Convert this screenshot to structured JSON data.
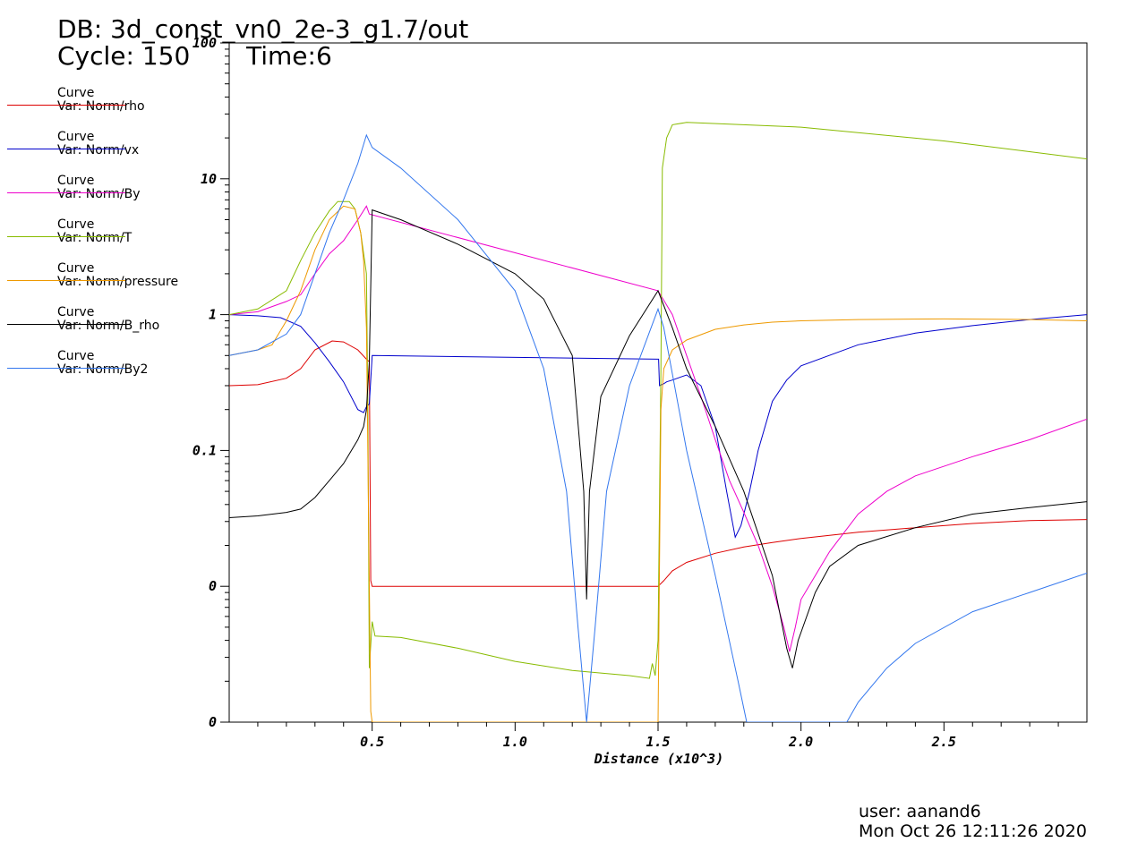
{
  "header": {
    "db": "DB: 3d_const_vn0_2e-3_g1.7/out",
    "cycle": "Cycle: 150",
    "time": "Time:6"
  },
  "legend": [
    {
      "line1": "Curve",
      "line2": "Var: Norm/rho",
      "color": "#dd0000"
    },
    {
      "line1": "Curve",
      "line2": "Var: Norm/vx",
      "color": "#0000cc"
    },
    {
      "line1": "Curve",
      "line2": "Var: Norm/By",
      "color": "#ee00cc"
    },
    {
      "line1": "Curve",
      "line2": "Var: Norm/T",
      "color": "#88bb00"
    },
    {
      "line1": "Curve",
      "line2": "Var: Norm/pressure",
      "color": "#ee9900"
    },
    {
      "line1": "Curve",
      "line2": "Var: Norm/B_rho",
      "color": "#000000"
    },
    {
      "line1": "Curve",
      "line2": "Var: Norm/By2",
      "color": "#3377ee"
    }
  ],
  "footer": {
    "user": "user: aanand6",
    "date": "Mon Oct 26 12:11:26 2020"
  },
  "chart_data": {
    "type": "line",
    "xlabel": "Distance (x10^3)",
    "ylabel": "",
    "xlim": [
      0,
      3.0
    ],
    "ylim_decades": [
      -3,
      2
    ],
    "y_scale": "log",
    "grid": false,
    "x_ticks": [
      "0.5",
      "1.0",
      "1.5",
      "2.0",
      "2.5"
    ],
    "x_tick_values": [
      0.5,
      1.0,
      1.5,
      2.0,
      2.5
    ],
    "y_ticks": [
      "0",
      "0",
      "0.1",
      "1",
      "10",
      "100"
    ],
    "y_tick_decades": [
      -3,
      -2,
      -1,
      0,
      1,
      2
    ],
    "series": [
      {
        "name": "Norm/rho",
        "color": "#dd0000",
        "points": [
          [
            0,
            0.3
          ],
          [
            0.1,
            0.305
          ],
          [
            0.2,
            0.34
          ],
          [
            0.25,
            0.4
          ],
          [
            0.3,
            0.55
          ],
          [
            0.36,
            0.64
          ],
          [
            0.4,
            0.63
          ],
          [
            0.45,
            0.55
          ],
          [
            0.48,
            0.47
          ],
          [
            0.49,
            0.45
          ],
          [
            0.495,
            0.011
          ],
          [
            0.5,
            0.01
          ],
          [
            1.0,
            0.01
          ],
          [
            1.5,
            0.01
          ],
          [
            1.52,
            0.011
          ],
          [
            1.55,
            0.013
          ],
          [
            1.6,
            0.015
          ],
          [
            1.7,
            0.0175
          ],
          [
            1.8,
            0.0195
          ],
          [
            1.9,
            0.021
          ],
          [
            2.0,
            0.0225
          ],
          [
            2.2,
            0.025
          ],
          [
            2.4,
            0.027
          ],
          [
            2.6,
            0.029
          ],
          [
            2.8,
            0.0305
          ],
          [
            3.0,
            0.031
          ]
        ]
      },
      {
        "name": "Norm/vx",
        "color": "#0000cc",
        "points": [
          [
            0,
            1.0
          ],
          [
            0.1,
            0.98
          ],
          [
            0.18,
            0.95
          ],
          [
            0.25,
            0.82
          ],
          [
            0.3,
            0.62
          ],
          [
            0.35,
            0.45
          ],
          [
            0.4,
            0.32
          ],
          [
            0.45,
            0.2
          ],
          [
            0.47,
            0.19
          ],
          [
            0.48,
            0.21
          ],
          [
            0.49,
            0.22
          ],
          [
            0.5,
            0.5
          ],
          [
            1.502,
            0.47
          ],
          [
            1.505,
            0.3
          ],
          [
            1.52,
            0.31
          ],
          [
            1.53,
            0.32
          ],
          [
            1.55,
            0.33
          ],
          [
            1.6,
            0.36
          ],
          [
            1.65,
            0.3
          ],
          [
            1.7,
            0.15
          ],
          [
            1.74,
            0.05
          ],
          [
            1.77,
            0.023
          ],
          [
            1.79,
            0.028
          ],
          [
            1.82,
            0.05
          ],
          [
            1.85,
            0.1
          ],
          [
            1.9,
            0.23
          ],
          [
            1.95,
            0.33
          ],
          [
            2.0,
            0.42
          ],
          [
            2.2,
            0.6
          ],
          [
            2.4,
            0.73
          ],
          [
            2.6,
            0.83
          ],
          [
            2.8,
            0.92
          ],
          [
            3.0,
            1.0
          ]
        ]
      },
      {
        "name": "Norm/By",
        "color": "#ee00cc",
        "points": [
          [
            0,
            1.0
          ],
          [
            0.1,
            1.05
          ],
          [
            0.2,
            1.25
          ],
          [
            0.25,
            1.4
          ],
          [
            0.3,
            2.0
          ],
          [
            0.35,
            2.8
          ],
          [
            0.4,
            3.5
          ],
          [
            0.45,
            5.0
          ],
          [
            0.48,
            6.3
          ],
          [
            0.49,
            5.5
          ],
          [
            1.5,
            1.5
          ],
          [
            1.55,
            1.0
          ],
          [
            1.6,
            0.5
          ],
          [
            1.65,
            0.25
          ],
          [
            1.7,
            0.12
          ],
          [
            1.75,
            0.06
          ],
          [
            1.8,
            0.035
          ],
          [
            1.85,
            0.02
          ],
          [
            1.9,
            0.01
          ],
          [
            1.94,
            0.005
          ],
          [
            1.96,
            0.0033
          ],
          [
            1.98,
            0.005
          ],
          [
            2.0,
            0.008
          ],
          [
            2.05,
            0.012
          ],
          [
            2.1,
            0.018
          ],
          [
            2.2,
            0.034
          ],
          [
            2.3,
            0.05
          ],
          [
            2.4,
            0.065
          ],
          [
            2.6,
            0.09
          ],
          [
            2.8,
            0.12
          ],
          [
            3.0,
            0.17
          ]
        ]
      },
      {
        "name": "Norm/T",
        "color": "#88bb00",
        "points": [
          [
            0,
            1.0
          ],
          [
            0.1,
            1.1
          ],
          [
            0.2,
            1.5
          ],
          [
            0.25,
            2.5
          ],
          [
            0.3,
            4.0
          ],
          [
            0.35,
            5.8
          ],
          [
            0.38,
            6.8
          ],
          [
            0.42,
            6.8
          ],
          [
            0.44,
            6.0
          ],
          [
            0.46,
            4.0
          ],
          [
            0.48,
            2.0
          ],
          [
            0.485,
            0.2
          ],
          [
            0.49,
            0.0025
          ],
          [
            0.5,
            0.0055
          ],
          [
            0.51,
            0.0043
          ],
          [
            0.6,
            0.0042
          ],
          [
            0.8,
            0.0035
          ],
          [
            1.0,
            0.0028
          ],
          [
            1.2,
            0.0024
          ],
          [
            1.4,
            0.0022
          ],
          [
            1.47,
            0.0021
          ],
          [
            1.48,
            0.0027
          ],
          [
            1.49,
            0.0022
          ],
          [
            1.5,
            0.004
          ],
          [
            1.51,
            0.4
          ],
          [
            1.515,
            12
          ],
          [
            1.53,
            20
          ],
          [
            1.55,
            25
          ],
          [
            1.6,
            26
          ],
          [
            2.0,
            24
          ],
          [
            2.5,
            19
          ],
          [
            3.0,
            14
          ]
        ]
      },
      {
        "name": "Norm/pressure",
        "color": "#ee9900",
        "points": [
          [
            0,
            0.5
          ],
          [
            0.1,
            0.55
          ],
          [
            0.15,
            0.6
          ],
          [
            0.2,
            0.9
          ],
          [
            0.25,
            1.5
          ],
          [
            0.3,
            3.0
          ],
          [
            0.35,
            5.0
          ],
          [
            0.4,
            6.3
          ],
          [
            0.44,
            6.0
          ],
          [
            0.46,
            4.0
          ],
          [
            0.47,
            2.5
          ],
          [
            0.48,
            0.8
          ],
          [
            0.495,
            0.0012
          ],
          [
            0.5,
            0.001
          ],
          [
            1.49,
            0.001
          ],
          [
            1.495,
            0.001
          ],
          [
            1.5,
            0.001
          ],
          [
            1.51,
            0.2
          ],
          [
            1.52,
            0.4
          ],
          [
            1.55,
            0.55
          ],
          [
            1.6,
            0.65
          ],
          [
            1.7,
            0.78
          ],
          [
            1.8,
            0.84
          ],
          [
            1.9,
            0.88
          ],
          [
            2.0,
            0.9
          ],
          [
            2.2,
            0.92
          ],
          [
            2.5,
            0.93
          ],
          [
            2.8,
            0.92
          ],
          [
            3.0,
            0.9
          ]
        ]
      },
      {
        "name": "Norm/B_rho",
        "color": "#000000",
        "points": [
          [
            0,
            0.032
          ],
          [
            0.1,
            0.033
          ],
          [
            0.2,
            0.035
          ],
          [
            0.25,
            0.037
          ],
          [
            0.3,
            0.045
          ],
          [
            0.35,
            0.06
          ],
          [
            0.4,
            0.08
          ],
          [
            0.45,
            0.12
          ],
          [
            0.47,
            0.15
          ],
          [
            0.48,
            0.2
          ],
          [
            0.49,
            0.45
          ],
          [
            0.5,
            5.9
          ],
          [
            0.6,
            5.0
          ],
          [
            0.8,
            3.3
          ],
          [
            1.0,
            2.0
          ],
          [
            1.1,
            1.3
          ],
          [
            1.2,
            0.5
          ],
          [
            1.24,
            0.05
          ],
          [
            1.25,
            0.008
          ],
          [
            1.26,
            0.05
          ],
          [
            1.3,
            0.25
          ],
          [
            1.4,
            0.7
          ],
          [
            1.5,
            1.5
          ],
          [
            1.55,
            0.8
          ],
          [
            1.6,
            0.4
          ],
          [
            1.7,
            0.15
          ],
          [
            1.8,
            0.05
          ],
          [
            1.9,
            0.012
          ],
          [
            1.95,
            0.0035
          ],
          [
            1.97,
            0.0025
          ],
          [
            1.99,
            0.004
          ],
          [
            2.05,
            0.009
          ],
          [
            2.1,
            0.014
          ],
          [
            2.2,
            0.02
          ],
          [
            2.4,
            0.027
          ],
          [
            2.6,
            0.034
          ],
          [
            2.8,
            0.038
          ],
          [
            3.0,
            0.042
          ]
        ]
      },
      {
        "name": "Norm/By2",
        "color": "#3377ee",
        "points": [
          [
            0,
            0.5
          ],
          [
            0.1,
            0.55
          ],
          [
            0.2,
            0.72
          ],
          [
            0.25,
            1.0
          ],
          [
            0.3,
            2.0
          ],
          [
            0.35,
            4.0
          ],
          [
            0.4,
            7.0
          ],
          [
            0.45,
            13
          ],
          [
            0.48,
            21
          ],
          [
            0.5,
            17
          ],
          [
            0.6,
            12
          ],
          [
            0.8,
            5.0
          ],
          [
            1.0,
            1.5
          ],
          [
            1.1,
            0.4
          ],
          [
            1.18,
            0.05
          ],
          [
            1.22,
            0.005
          ],
          [
            1.25,
            0.001
          ],
          [
            1.28,
            0.005
          ],
          [
            1.32,
            0.05
          ],
          [
            1.4,
            0.3
          ],
          [
            1.5,
            1.1
          ],
          [
            1.52,
            0.8
          ],
          [
            1.6,
            0.1
          ],
          [
            1.7,
            0.012
          ],
          [
            1.78,
            0.002
          ],
          [
            1.81,
            0.001
          ],
          [
            2.16,
            0.001
          ],
          [
            2.2,
            0.0014
          ],
          [
            2.3,
            0.0025
          ],
          [
            2.4,
            0.0038
          ],
          [
            2.6,
            0.0065
          ],
          [
            2.8,
            0.009
          ],
          [
            3.0,
            0.0125
          ]
        ]
      }
    ]
  }
}
